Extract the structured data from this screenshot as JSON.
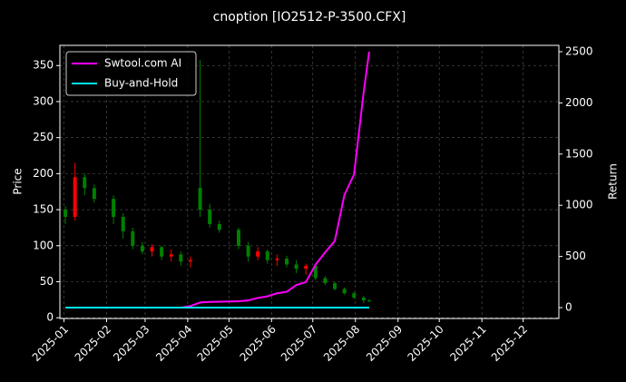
{
  "chart_data": {
    "type": "candlestick",
    "title": "cnoption [IO2512-P-3500.CFX]",
    "ylabel": "Price",
    "y2label": "Return",
    "x": [
      "2025-01-02",
      "2025-01-09",
      "2025-01-16",
      "2025-01-23",
      "2025-02-06",
      "2025-02-13",
      "2025-02-20",
      "2025-02-27",
      "2025-03-06",
      "2025-03-13",
      "2025-03-20",
      "2025-03-27",
      "2025-04-03",
      "2025-04-10",
      "2025-04-17",
      "2025-04-24",
      "2025-05-08",
      "2025-05-15",
      "2025-05-22",
      "2025-05-29",
      "2025-06-05",
      "2025-06-12",
      "2025-06-19",
      "2025-06-26",
      "2025-07-03",
      "2025-07-10",
      "2025-07-17",
      "2025-07-24",
      "2025-07-31",
      "2025-08-07",
      "2025-08-11"
    ],
    "open": [
      150,
      140,
      195,
      180,
      165,
      140,
      120,
      100,
      92,
      98,
      85,
      88,
      78,
      180,
      150,
      130,
      122,
      100,
      85,
      92,
      80,
      82,
      74,
      68,
      72,
      55,
      48,
      40,
      34,
      28,
      24
    ],
    "high": [
      155,
      215,
      200,
      185,
      170,
      145,
      125,
      105,
      102,
      100,
      95,
      92,
      85,
      358,
      158,
      135,
      125,
      105,
      98,
      95,
      88,
      86,
      80,
      75,
      74,
      58,
      50,
      42,
      36,
      30,
      26
    ],
    "low": [
      130,
      135,
      170,
      160,
      130,
      110,
      95,
      88,
      85,
      80,
      78,
      72,
      70,
      140,
      125,
      118,
      95,
      78,
      80,
      75,
      72,
      70,
      62,
      60,
      52,
      45,
      38,
      32,
      26,
      20,
      22
    ],
    "close": [
      140,
      195,
      180,
      165,
      140,
      120,
      100,
      92,
      98,
      85,
      88,
      78,
      80,
      150,
      130,
      122,
      100,
      85,
      92,
      80,
      82,
      74,
      68,
      72,
      55,
      48,
      40,
      34,
      28,
      24,
      23
    ],
    "up_color": "#ff0000",
    "down_color": "#008000",
    "series": [
      {
        "name": "Swtool.com AI",
        "color": "#ff00ff",
        "axis": "y2",
        "values": [
          0,
          0,
          0,
          0,
          0,
          0,
          0,
          0,
          0,
          0,
          0,
          0,
          15,
          50,
          55,
          58,
          62,
          70,
          95,
          110,
          140,
          155,
          220,
          250,
          420,
          540,
          650,
          1100,
          1300,
          2100,
          2500
        ]
      },
      {
        "name": "Buy-and-Hold",
        "color": "#00e5ee",
        "axis": "y2",
        "values": [
          0,
          0,
          0,
          0,
          0,
          0,
          0,
          0,
          0,
          0,
          0,
          0,
          0,
          0,
          0,
          0,
          0,
          0,
          0,
          0,
          0,
          0,
          0,
          0,
          0,
          0,
          0,
          0,
          0,
          0,
          0
        ]
      }
    ],
    "xlim": [
      "2024-12-29",
      "2025-12-27"
    ],
    "xticks": [
      {
        "value": "2025-01-01",
        "label": "2025-01"
      },
      {
        "value": "2025-02-01",
        "label": "2025-02"
      },
      {
        "value": "2025-03-01",
        "label": "2025-03"
      },
      {
        "value": "2025-04-01",
        "label": "2025-04"
      },
      {
        "value": "2025-05-01",
        "label": "2025-05"
      },
      {
        "value": "2025-06-01",
        "label": "2025-06"
      },
      {
        "value": "2025-07-01",
        "label": "2025-07"
      },
      {
        "value": "2025-08-01",
        "label": "2025-08"
      },
      {
        "value": "2025-09-01",
        "label": "2025-09"
      },
      {
        "value": "2025-10-01",
        "label": "2025-10"
      },
      {
        "value": "2025-11-01",
        "label": "2025-11"
      },
      {
        "value": "2025-12-01",
        "label": "2025-12"
      }
    ],
    "ylim": [
      -1,
      378
    ],
    "yticks": [
      0,
      50,
      100,
      150,
      200,
      250,
      300,
      350
    ],
    "y2lim": [
      -106,
      2562
    ],
    "y2ticks": [
      0,
      500,
      1000,
      1500,
      2000,
      2500
    ],
    "grid": true,
    "legend": "upper left"
  }
}
